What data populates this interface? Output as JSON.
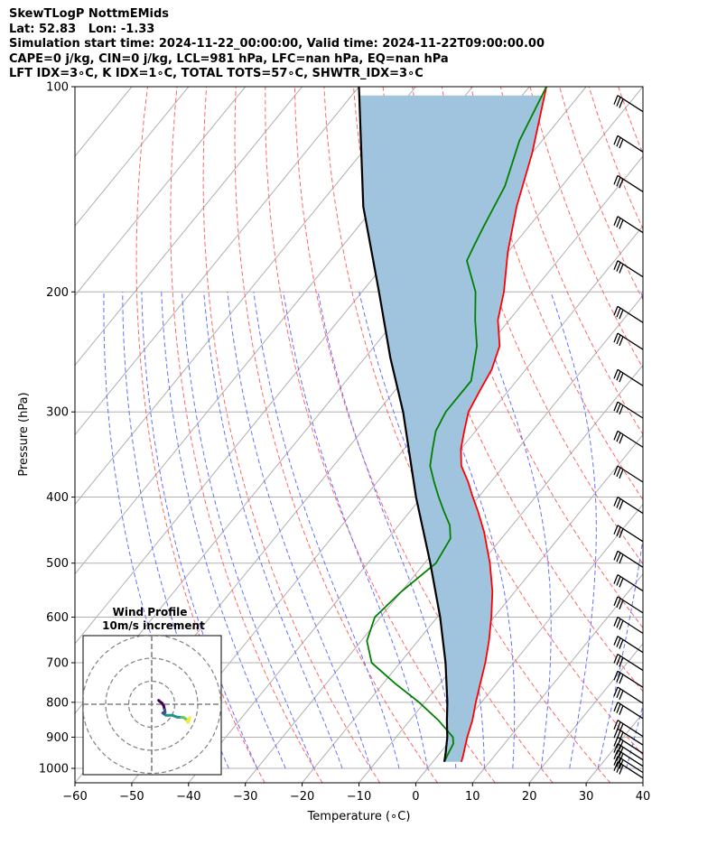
{
  "header": {
    "lines": [
      "SkewTLogP NottmEMids",
      "Lat: 52.83   Lon: -1.33",
      "Simulation start time: 2024-11-22_00:00:00, Valid time: 2024-11-22T09:00:00.00",
      "CAPE=0 j/kg, CIN=0 j/kg, LCL=981 hPa, LFC=nan hPa, EQ=nan hPa",
      "LFT IDX=3∘C, K IDX=1∘C, TOTAL TOTS=57∘C, SHWTR_IDX=3∘C"
    ]
  },
  "chart_data": {
    "type": "skewt",
    "xlabel": "Temperature (∘C)",
    "ylabel": "Pressure (hPa)",
    "xlim": [
      -60,
      40
    ],
    "ylim": [
      1050,
      100
    ],
    "x_ticks": [
      -60,
      -50,
      -40,
      -30,
      -20,
      -10,
      0,
      10,
      20,
      30,
      40
    ],
    "y_ticks": [
      1000,
      900,
      800,
      700,
      600,
      500,
      400,
      300,
      200,
      100
    ],
    "grid": true,
    "series": [
      {
        "role": "temperature",
        "color": "#ff0000",
        "points": [
          [
            978,
            5
          ],
          [
            960,
            4.5
          ],
          [
            900,
            2.5
          ],
          [
            850,
            1
          ],
          [
            800,
            -1
          ],
          [
            700,
            -5
          ],
          [
            650,
            -7.5
          ],
          [
            600,
            -10.5
          ],
          [
            550,
            -14
          ],
          [
            500,
            -18.5
          ],
          [
            450,
            -24
          ],
          [
            420,
            -28
          ],
          [
            400,
            -31
          ],
          [
            380,
            -34
          ],
          [
            360,
            -37.5
          ],
          [
            340,
            -40
          ],
          [
            320,
            -42
          ],
          [
            300,
            -44
          ],
          [
            280,
            -45
          ],
          [
            260,
            -46
          ],
          [
            240,
            -48
          ],
          [
            220,
            -52
          ],
          [
            200,
            -55
          ],
          [
            175,
            -60
          ],
          [
            150,
            -65
          ],
          [
            125,
            -70
          ],
          [
            100,
            -77
          ]
        ]
      },
      {
        "role": "dewpoint",
        "color": "#008000",
        "points": [
          [
            978,
            2
          ],
          [
            950,
            1.5
          ],
          [
            920,
            1
          ],
          [
            900,
            0
          ],
          [
            850,
            -5
          ],
          [
            800,
            -11
          ],
          [
            750,
            -18
          ],
          [
            700,
            -25
          ],
          [
            650,
            -29
          ],
          [
            600,
            -31
          ],
          [
            550,
            -30
          ],
          [
            500,
            -28
          ],
          [
            460,
            -29
          ],
          [
            440,
            -31
          ],
          [
            420,
            -34
          ],
          [
            400,
            -37
          ],
          [
            380,
            -40
          ],
          [
            360,
            -43
          ],
          [
            340,
            -45
          ],
          [
            320,
            -47
          ],
          [
            300,
            -48
          ],
          [
            270,
            -48
          ],
          [
            240,
            -52
          ],
          [
            220,
            -56
          ],
          [
            200,
            -60
          ],
          [
            180,
            -66
          ],
          [
            170,
            -67
          ],
          [
            160,
            -68
          ],
          [
            140,
            -70
          ],
          [
            120,
            -74
          ],
          [
            100,
            -77
          ]
        ]
      },
      {
        "role": "parcel",
        "color": "#000000",
        "points": [
          [
            978,
            2
          ],
          [
            950,
            1
          ],
          [
            900,
            -1
          ],
          [
            850,
            -3.5
          ],
          [
            800,
            -6
          ],
          [
            700,
            -12
          ],
          [
            600,
            -19.5
          ],
          [
            500,
            -29
          ],
          [
            400,
            -41
          ],
          [
            300,
            -55.5
          ],
          [
            250,
            -65.5
          ],
          [
            200,
            -77
          ],
          [
            150,
            -92
          ],
          [
            100,
            -110
          ]
        ]
      }
    ],
    "shaded_region": {
      "between": [
        "temperature",
        "parcel"
      ],
      "color": "#a1c4de"
    },
    "wind_barbs": {
      "color": "#000000",
      "levels_hpa": [
        978,
        960,
        940,
        920,
        900,
        875,
        850,
        800,
        760,
        720,
        680,
        640,
        600,
        560,
        520,
        480,
        440,
        400,
        360,
        320,
        290,
        260,
        230,
        210,
        180,
        155,
        135,
        118,
        103
      ]
    },
    "inset": {
      "title": "Wind Profile",
      "subtitle": "10m/s increment",
      "rings": 3,
      "hodograph_colormap": [
        "#440154",
        "#3b528b",
        "#21918c",
        "#5ec962",
        "#fde725"
      ],
      "hodograph_points": [
        [
          3,
          1.7
        ],
        [
          3.5,
          1.2
        ],
        [
          4.5,
          0.5
        ],
        [
          5.2,
          -0.7
        ],
        [
          5.6,
          -2.3
        ],
        [
          5.8,
          -3.4
        ],
        [
          4.8,
          -3.8
        ],
        [
          6.2,
          -4.8
        ],
        [
          9,
          -4.8
        ],
        [
          11,
          -5.6
        ],
        [
          12.9,
          -5.7
        ],
        [
          13.9,
          -5.8
        ],
        [
          14.9,
          -6.5
        ],
        [
          15.4,
          -7.1
        ],
        [
          15.7,
          -7.9
        ],
        [
          16.2,
          -6.7
        ],
        [
          16.5,
          -5.8
        ]
      ]
    }
  }
}
